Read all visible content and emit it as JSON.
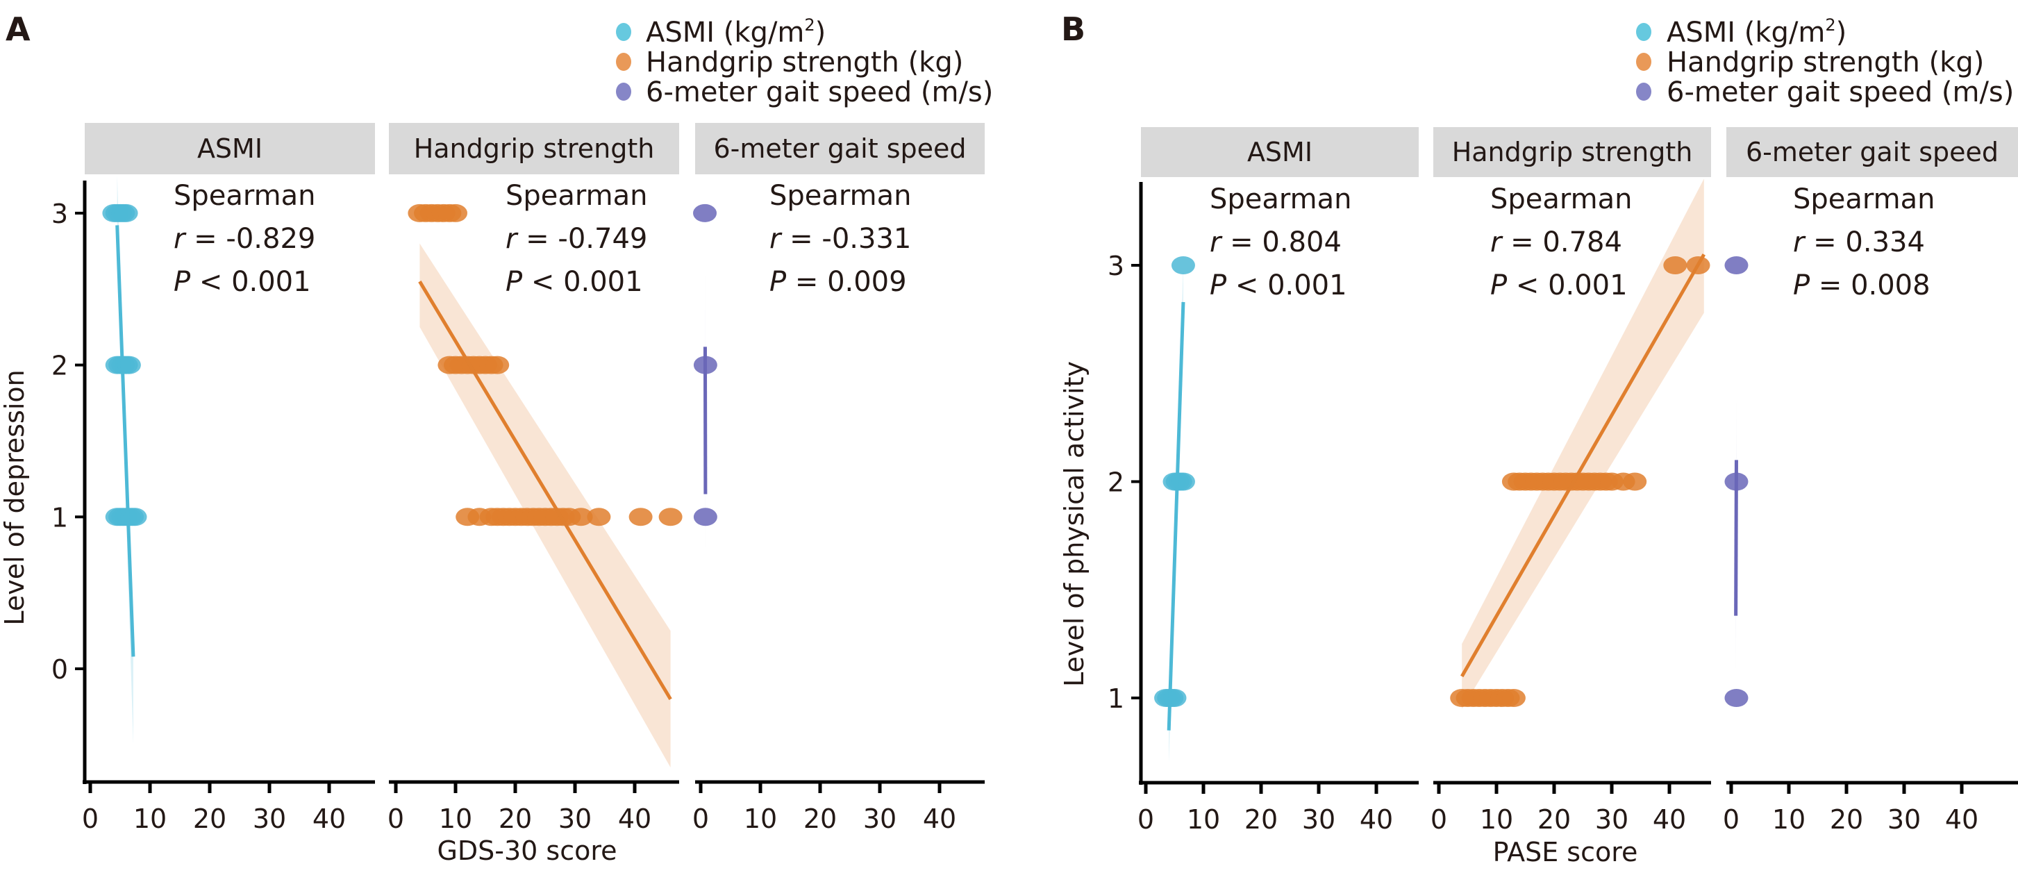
{
  "figure": {
    "panels": [
      {
        "letter": "A",
        "ylabel": "Level of depression",
        "xlabel": "GDS-30 score",
        "legend": [
          {
            "label": "ASMI (kg/m",
            "sup": "2",
            "tail": ")",
            "color": "#5ec6dd"
          },
          {
            "label": "Handgrip strength (kg)",
            "sup": "",
            "tail": "",
            "color": "#e8944f"
          },
          {
            "label": "6-meter gait speed (m/s)",
            "sup": "",
            "tail": "",
            "color": "#7f7fc4"
          }
        ]
      },
      {
        "letter": "B",
        "ylabel": "Level of physical activity",
        "xlabel": "PASE score",
        "legend": [
          {
            "label": "ASMI (kg/m",
            "sup": "2",
            "tail": ")",
            "color": "#5ec6dd"
          },
          {
            "label": "Handgrip strength (kg)",
            "sup": "",
            "tail": "",
            "color": "#e8944f"
          },
          {
            "label": "6-meter gait speed (m/s)",
            "sup": "",
            "tail": "",
            "color": "#7f7fc4"
          }
        ]
      }
    ]
  },
  "chart_data": [
    {
      "type": "scatter",
      "panel": "A",
      "title": "",
      "xlabel": "GDS-30 score",
      "ylabel": "Level of depression",
      "yticks": [
        0,
        1,
        2,
        3
      ],
      "xticks": [
        0,
        10,
        20,
        30,
        40
      ],
      "ylim": [
        -1.4,
        3.3
      ],
      "xlim": [
        -1,
        48
      ],
      "facets": [
        {
          "name": "ASMI",
          "color": "#4db9d6",
          "stat_method": "Spearman",
          "r_label": "r",
          "r_value": "= -0.829",
          "p_label": "P",
          "p_value": "< 0.001",
          "points": [
            {
              "y": 3,
              "x": [
                4,
                4.5,
                5,
                5.5,
                6
              ]
            },
            {
              "y": 2,
              "x": [
                4.5,
                5,
                5.5,
                6,
                6.5
              ]
            },
            {
              "y": 1,
              "x": [
                4.5,
                5,
                5.5,
                6,
                6.5,
                7,
                7.5
              ]
            }
          ],
          "fit": {
            "x": [
              4.5,
              7.2
            ],
            "y": [
              2.92,
              0.08
            ]
          },
          "ci": {
            "x": [
              4.5,
              7.2
            ],
            "upper": [
              3.25,
              0.1
            ],
            "lower": [
              2.92,
              -0.5
            ]
          }
        },
        {
          "name": "Handgrip strength",
          "color": "#e07f2e",
          "stat_method": "Spearman",
          "r_label": "r",
          "r_value": "= -0.749",
          "p_label": "P",
          "p_value": "< 0.001",
          "points": [
            {
              "y": 3,
              "x": [
                4,
                5,
                6,
                7,
                8,
                9,
                10
              ]
            },
            {
              "y": 2,
              "x": [
                9,
                10,
                11,
                12,
                13,
                14,
                15,
                16,
                17
              ]
            },
            {
              "y": 1,
              "x": [
                12,
                14,
                16,
                17,
                18,
                19,
                20,
                21,
                22,
                23,
                24,
                25,
                26,
                27,
                28,
                29,
                31,
                34,
                41,
                46
              ]
            }
          ],
          "fit": {
            "x": [
              4,
              46
            ],
            "y": [
              2.55,
              -0.2
            ]
          },
          "ci": {
            "x": [
              4,
              46
            ],
            "upper": [
              2.8,
              0.25
            ],
            "lower": [
              2.25,
              -0.65
            ]
          }
        },
        {
          "name": "6-meter gait speed",
          "color": "#6a67b8",
          "stat_method": "Spearman",
          "r_label": "r",
          "r_value": "= -0.331",
          "p_label": "P",
          "p_value": "= 0.009",
          "points": [
            {
              "y": 3,
              "x": [
                0.7
              ]
            },
            {
              "y": 2,
              "x": [
                0.8
              ]
            },
            {
              "y": 1,
              "x": [
                0.8
              ]
            }
          ],
          "fit": {
            "x": [
              0.75,
              0.8
            ],
            "y": [
              2.12,
              1.15
            ]
          },
          "ci": {
            "x": [
              0.75,
              0.8
            ],
            "upper": [
              2.6,
              1.15
            ],
            "lower": [
              2.12,
              0.75
            ]
          }
        }
      ]
    },
    {
      "type": "scatter",
      "panel": "B",
      "title": "",
      "xlabel": "PASE score",
      "ylabel": "Level of physical activity",
      "yticks": [
        1,
        2,
        3
      ],
      "xticks": [
        0,
        10,
        20,
        30,
        40
      ],
      "ylim": [
        0.6,
        3.4
      ],
      "xlim": [
        -1,
        48
      ],
      "facets": [
        {
          "name": "ASMI",
          "color": "#4db9d6",
          "stat_method": "Spearman",
          "r_label": "r",
          "r_value": "= 0.804",
          "p_label": "P",
          "p_value": "< 0.001",
          "points": [
            {
              "y": 3,
              "x": [
                6.5
              ]
            },
            {
              "y": 2,
              "x": [
                5,
                5.5,
                6,
                6.5
              ]
            },
            {
              "y": 1,
              "x": [
                3.5,
                4,
                4.5,
                5
              ]
            }
          ],
          "fit": {
            "x": [
              4,
              6.5
            ],
            "y": [
              0.85,
              2.83
            ]
          },
          "ci": {
            "x": [
              4,
              6.5
            ],
            "upper": [
              0.85,
              3.0
            ],
            "lower": [
              0.7,
              2.83
            ]
          }
        },
        {
          "name": "Handgrip strength",
          "color": "#e07f2e",
          "stat_method": "Spearman",
          "r_label": "r",
          "r_value": "= 0.784",
          "p_label": "P",
          "p_value": "< 0.001",
          "points": [
            {
              "y": 3,
              "x": [
                41,
                45
              ]
            },
            {
              "y": 2,
              "x": [
                13,
                14,
                15,
                16,
                17,
                18,
                19,
                20,
                21,
                22,
                23,
                24,
                25,
                26,
                27,
                28,
                29,
                30,
                32,
                34
              ]
            },
            {
              "y": 1,
              "x": [
                4,
                5,
                6,
                7,
                8,
                9,
                10,
                11,
                12,
                13
              ]
            }
          ],
          "fit": {
            "x": [
              4,
              46
            ],
            "y": [
              1.1,
              3.05
            ]
          },
          "ci": {
            "x": [
              4,
              46
            ],
            "upper": [
              1.25,
              3.4
            ],
            "lower": [
              0.95,
              2.78
            ]
          }
        },
        {
          "name": "6-meter gait speed",
          "color": "#6a67b8",
          "stat_method": "Spearman",
          "r_label": "r",
          "r_value": "= 0.334",
          "p_label": "P",
          "p_value": "= 0.008",
          "points": [
            {
              "y": 3,
              "x": [
                0.9
              ]
            },
            {
              "y": 2,
              "x": [
                0.9
              ]
            },
            {
              "y": 1,
              "x": [
                0.9
              ]
            }
          ],
          "fit": {
            "x": [
              0.8,
              0.9
            ],
            "y": [
              1.38,
              2.1
            ]
          },
          "ci": {
            "x": [
              0.8,
              0.9
            ],
            "upper": [
              1.38,
              2.38
            ],
            "lower": [
              1.13,
              2.1
            ]
          }
        }
      ]
    }
  ]
}
